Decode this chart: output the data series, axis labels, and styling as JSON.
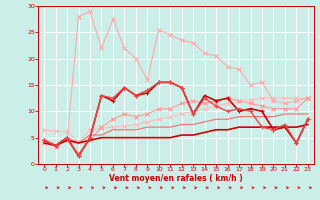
{
  "xlabel": "Vent moyen/en rafales ( km/h )",
  "bg_color": "#cceee8",
  "grid_color": "#ffffff",
  "xlim": [
    -0.5,
    23.5
  ],
  "ylim": [
    0,
    30
  ],
  "yticks": [
    0,
    5,
    10,
    15,
    20,
    25,
    30
  ],
  "xticks": [
    0,
    1,
    2,
    3,
    4,
    5,
    6,
    7,
    8,
    9,
    10,
    11,
    12,
    13,
    14,
    15,
    16,
    17,
    18,
    19,
    20,
    21,
    22,
    23
  ],
  "series": [
    {
      "x": [
        0,
        1,
        2,
        3,
        4,
        5,
        6,
        7,
        8,
        9,
        10,
        11,
        12,
        13,
        14,
        15,
        16,
        17,
        18,
        19,
        20,
        21,
        22,
        23
      ],
      "y": [
        6.5,
        6.2,
        6.2,
        4.2,
        6.5,
        6.8,
        7.0,
        7.2,
        7.5,
        8.0,
        8.5,
        9.0,
        9.5,
        10.0,
        10.5,
        11.0,
        11.5,
        12.0,
        12.2,
        12.5,
        12.5,
        12.5,
        12.5,
        12.5
      ],
      "color": "#ffbbbb",
      "lw": 0.8,
      "marker": "x",
      "ms": 2.5,
      "zorder": 2
    },
    {
      "x": [
        0,
        1,
        2,
        3,
        4,
        5,
        6,
        7,
        8,
        9,
        10,
        11,
        12,
        13,
        14,
        15,
        16,
        17,
        18,
        19,
        20,
        21,
        22,
        23
      ],
      "y": [
        4.2,
        3.5,
        4.5,
        28.0,
        29.0,
        22.0,
        27.5,
        22.0,
        20.0,
        16.0,
        25.5,
        24.5,
        23.5,
        23.0,
        21.0,
        20.5,
        18.5,
        18.0,
        15.0,
        15.5,
        12.0,
        11.5,
        12.0,
        12.5
      ],
      "color": "#ffaaaa",
      "lw": 0.8,
      "marker": "x",
      "ms": 2.5,
      "zorder": 2
    },
    {
      "x": [
        0,
        1,
        2,
        3,
        4,
        5,
        6,
        7,
        8,
        9,
        10,
        11,
        12,
        13,
        14,
        15,
        16,
        17,
        18,
        19,
        20,
        21,
        22,
        23
      ],
      "y": [
        4.0,
        3.5,
        4.5,
        2.0,
        4.5,
        7.0,
        8.5,
        9.5,
        9.0,
        9.5,
        10.5,
        10.5,
        11.5,
        12.0,
        11.5,
        12.0,
        12.5,
        12.0,
        11.5,
        11.0,
        10.5,
        10.5,
        10.5,
        12.5
      ],
      "color": "#ff9999",
      "lw": 0.8,
      "marker": "x",
      "ms": 2.5,
      "zorder": 2
    },
    {
      "x": [
        0,
        1,
        2,
        3,
        4,
        5,
        6,
        7,
        8,
        9,
        10,
        11,
        12,
        13,
        14,
        15,
        16,
        17,
        18,
        19,
        20,
        21,
        22,
        23
      ],
      "y": [
        4.5,
        3.5,
        5.0,
        4.0,
        5.5,
        5.5,
        6.5,
        6.5,
        6.5,
        7.0,
        7.0,
        7.0,
        7.5,
        7.5,
        8.0,
        8.5,
        8.5,
        9.0,
        9.0,
        9.0,
        9.0,
        9.5,
        9.5,
        9.5
      ],
      "color": "#ee7777",
      "lw": 0.9,
      "marker": null,
      "ms": 0,
      "zorder": 2
    },
    {
      "x": [
        0,
        1,
        2,
        3,
        4,
        5,
        6,
        7,
        8,
        9,
        10,
        11,
        12,
        13,
        14,
        15,
        16,
        17,
        18,
        19,
        20,
        21,
        22,
        23
      ],
      "y": [
        4.0,
        3.5,
        4.5,
        4.0,
        4.5,
        5.0,
        5.0,
        5.0,
        5.0,
        5.0,
        5.0,
        5.0,
        5.5,
        5.5,
        6.0,
        6.5,
        6.5,
        7.0,
        7.0,
        7.0,
        7.0,
        7.0,
        7.0,
        7.5
      ],
      "color": "#cc0000",
      "lw": 1.2,
      "marker": null,
      "ms": 0,
      "zorder": 3
    },
    {
      "x": [
        0,
        1,
        2,
        3,
        4,
        5,
        6,
        7,
        8,
        9,
        10,
        11,
        12,
        13,
        14,
        15,
        16,
        17,
        18,
        19,
        20,
        21,
        22,
        23
      ],
      "y": [
        4.5,
        3.5,
        5.0,
        1.5,
        5.0,
        13.0,
        12.0,
        14.5,
        13.0,
        13.5,
        15.5,
        15.5,
        14.5,
        9.5,
        13.0,
        12.0,
        12.5,
        10.0,
        10.5,
        10.0,
        6.5,
        7.0,
        4.0,
        8.5
      ],
      "color": "#cc0000",
      "lw": 1.2,
      "marker": "+",
      "ms": 3.5,
      "zorder": 3
    },
    {
      "x": [
        0,
        1,
        2,
        3,
        4,
        5,
        6,
        7,
        8,
        9,
        10,
        11,
        12,
        13,
        14,
        15,
        16,
        17,
        18,
        19,
        20,
        21,
        22,
        23
      ],
      "y": [
        4.5,
        3.5,
        5.0,
        1.5,
        5.0,
        13.0,
        12.5,
        14.5,
        13.0,
        14.0,
        15.5,
        15.5,
        14.5,
        9.5,
        12.5,
        11.0,
        10.0,
        10.5,
        10.0,
        7.0,
        6.5,
        7.5,
        4.0,
        8.5
      ],
      "color": "#ee4444",
      "lw": 1.0,
      "marker": "+",
      "ms": 3.0,
      "zorder": 3
    }
  ]
}
